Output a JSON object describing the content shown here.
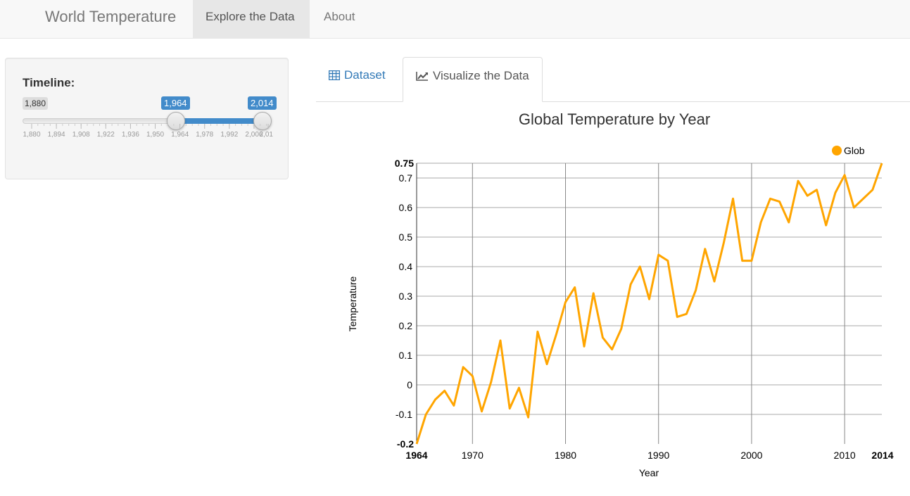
{
  "navbar": {
    "brand": "World Temperature",
    "items": [
      {
        "label": "Explore the Data",
        "active": true
      },
      {
        "label": "About",
        "active": false
      }
    ]
  },
  "sidebar": {
    "label": "Timeline:",
    "slider": {
      "min": 1880,
      "max": 2014,
      "from": 1964,
      "to": 2014,
      "min_label": "1,880",
      "from_label": "1,964",
      "to_label": "2,014",
      "grid_labels": [
        "1,880",
        "1,894",
        "1,908",
        "1,922",
        "1,936",
        "1,950",
        "1,964",
        "1,978",
        "1,992",
        "2,006",
        "2,014"
      ],
      "accent_color": "#428bca"
    }
  },
  "tabs": [
    {
      "label": "Dataset",
      "icon": "table-icon",
      "active": false
    },
    {
      "label": "Visualize the Data",
      "icon": "line-chart-icon",
      "active": true
    }
  ],
  "chart_data": {
    "type": "line",
    "title": "Global Temperature by Year",
    "xlabel": "Year",
    "ylabel": "Temperature",
    "xlim": [
      1964,
      2014
    ],
    "ylim": [
      -0.2,
      0.75
    ],
    "x_ticks": [
      1970,
      1980,
      1990,
      2000,
      2010
    ],
    "y_ticks": [
      -0.1,
      0,
      0.1,
      0.2,
      0.3,
      0.4,
      0.5,
      0.6,
      0.7
    ],
    "x_tick_labels": [
      "1970",
      "1980",
      "1990",
      "2000",
      "2010"
    ],
    "y_tick_labels": [
      "-0.1",
      "0",
      "0.1",
      "0.2",
      "0.3",
      "0.4",
      "0.5",
      "0.6",
      "0.7"
    ],
    "x_min_label": "1964",
    "x_max_label": "2014",
    "y_min_label": "-0.2",
    "y_max_label": "0.75",
    "grid": true,
    "legend": "top-right",
    "series": [
      {
        "name": "Glob",
        "color": "#ffa500",
        "x": [
          1964,
          1965,
          1966,
          1967,
          1968,
          1969,
          1970,
          1971,
          1972,
          1973,
          1974,
          1975,
          1976,
          1977,
          1978,
          1979,
          1980,
          1981,
          1982,
          1983,
          1984,
          1985,
          1986,
          1987,
          1988,
          1989,
          1990,
          1991,
          1992,
          1993,
          1994,
          1995,
          1996,
          1997,
          1998,
          1999,
          2000,
          2001,
          2002,
          2003,
          2004,
          2005,
          2006,
          2007,
          2008,
          2009,
          2010,
          2011,
          2013,
          2014
        ],
        "values": [
          -0.2,
          -0.1,
          -0.05,
          -0.02,
          -0.07,
          0.06,
          0.03,
          -0.09,
          0.01,
          0.15,
          -0.08,
          -0.01,
          -0.11,
          0.18,
          0.07,
          0.17,
          0.28,
          0.33,
          0.13,
          0.31,
          0.16,
          0.12,
          0.19,
          0.34,
          0.4,
          0.29,
          0.44,
          0.42,
          0.23,
          0.24,
          0.32,
          0.46,
          0.35,
          0.48,
          0.63,
          0.42,
          0.42,
          0.55,
          0.63,
          0.62,
          0.55,
          0.69,
          0.64,
          0.66,
          0.54,
          0.65,
          0.71,
          0.6,
          0.66,
          0.75
        ]
      }
    ]
  }
}
